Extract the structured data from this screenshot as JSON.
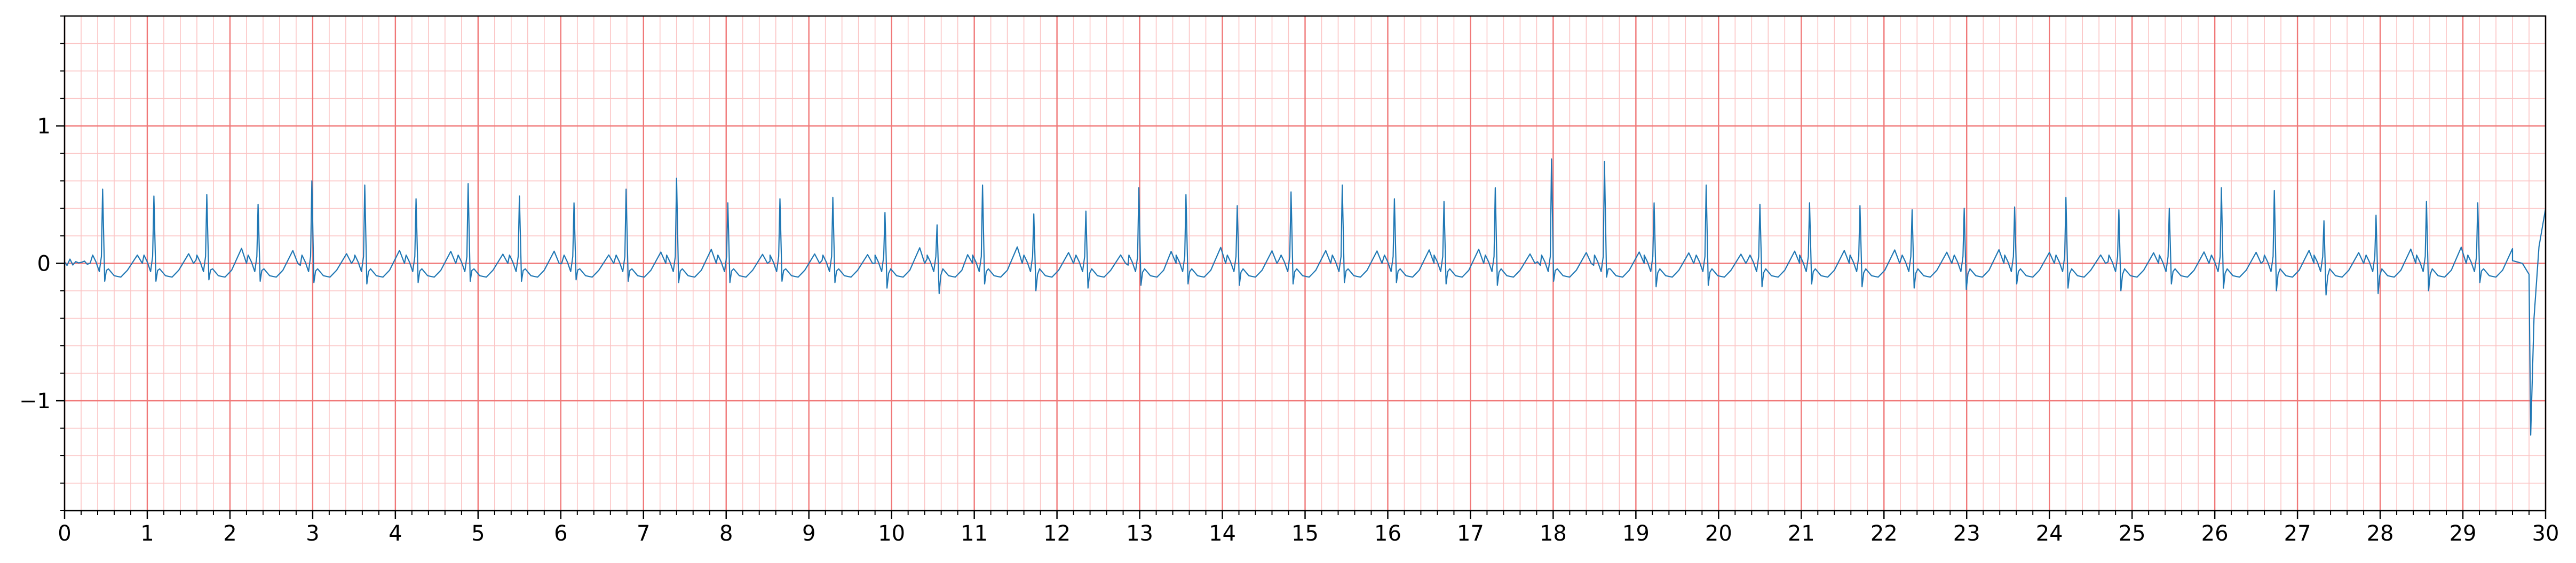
{
  "chart_data": {
    "type": "line",
    "title": "",
    "xlabel": "",
    "ylabel": "",
    "xlim": [
      0,
      30
    ],
    "ylim": [
      -1.8,
      1.8
    ],
    "x_ticks": [
      0,
      1,
      2,
      3,
      4,
      5,
      6,
      7,
      8,
      9,
      10,
      11,
      12,
      13,
      14,
      15,
      16,
      17,
      18,
      19,
      20,
      21,
      22,
      23,
      24,
      25,
      26,
      27,
      28,
      29,
      30
    ],
    "x_tick_labels": [
      "0",
      "1",
      "2",
      "3",
      "4",
      "5",
      "6",
      "7",
      "8",
      "9",
      "10",
      "11",
      "12",
      "13",
      "14",
      "15",
      "16",
      "17",
      "18",
      "19",
      "20",
      "21",
      "22",
      "23",
      "24",
      "25",
      "26",
      "27",
      "28",
      "29",
      "30"
    ],
    "y_ticks": [
      -1,
      0,
      1
    ],
    "y_tick_labels": [
      "−1",
      "0",
      "1"
    ],
    "grid": {
      "major": true,
      "major_x_step": 1,
      "major_y_step": 1,
      "minor": true,
      "minor_x_step": 0.2,
      "minor_y_step": 0.2,
      "major_color": "#f07878",
      "minor_color": "#fbc4c4"
    },
    "line_color": "#1f77b4",
    "series": [
      {
        "beat_times": [
          0.46,
          1.08,
          1.72,
          2.34,
          2.99,
          3.63,
          4.25,
          4.88,
          5.5,
          6.16,
          6.79,
          7.4,
          8.02,
          8.65,
          9.29,
          9.92,
          10.55,
          11.1,
          11.72,
          12.35,
          12.99,
          13.56,
          14.18,
          14.83,
          15.45,
          16.08,
          16.68,
          17.3,
          17.98,
          18.62,
          19.22,
          19.85,
          20.5,
          21.1,
          21.71,
          22.34,
          22.97,
          23.58,
          24.2,
          24.84,
          25.45,
          26.08,
          26.72,
          27.32,
          27.95,
          28.56,
          29.18
        ],
        "r_peaks": [
          0.54,
          0.49,
          0.5,
          0.43,
          0.6,
          0.57,
          0.47,
          0.58,
          0.49,
          0.44,
          0.54,
          0.62,
          0.44,
          0.47,
          0.48,
          0.37,
          0.28,
          0.57,
          0.36,
          0.38,
          0.55,
          0.5,
          0.42,
          0.52,
          0.57,
          0.47,
          0.45,
          0.55,
          0.76,
          0.74,
          0.44,
          0.57,
          0.43,
          0.44,
          0.42,
          0.39,
          0.4,
          0.41,
          0.48,
          0.39,
          0.4,
          0.55,
          0.53,
          0.31,
          0.35,
          0.45,
          0.44
        ],
        "s_troughs": [
          -0.13,
          -0.13,
          -0.12,
          -0.13,
          -0.14,
          -0.15,
          -0.14,
          -0.13,
          -0.13,
          -0.12,
          -0.13,
          -0.14,
          -0.14,
          -0.13,
          -0.14,
          -0.18,
          -0.22,
          -0.15,
          -0.2,
          -0.18,
          -0.16,
          -0.15,
          -0.16,
          -0.15,
          -0.14,
          -0.14,
          -0.15,
          -0.16,
          -0.13,
          -0.1,
          -0.17,
          -0.16,
          -0.17,
          -0.15,
          -0.17,
          -0.18,
          -0.19,
          -0.15,
          -0.18,
          -0.2,
          -0.15,
          -0.18,
          -0.2,
          -0.23,
          -0.22,
          -0.2,
          -0.14
        ],
        "end_segment": {
          "x": [
            29.6,
            29.72,
            29.8,
            29.82,
            29.86,
            29.92,
            30.0
          ],
          "y": [
            0.02,
            0.0,
            -0.08,
            -1.25,
            -0.4,
            0.12,
            0.4
          ]
        }
      }
    ]
  }
}
